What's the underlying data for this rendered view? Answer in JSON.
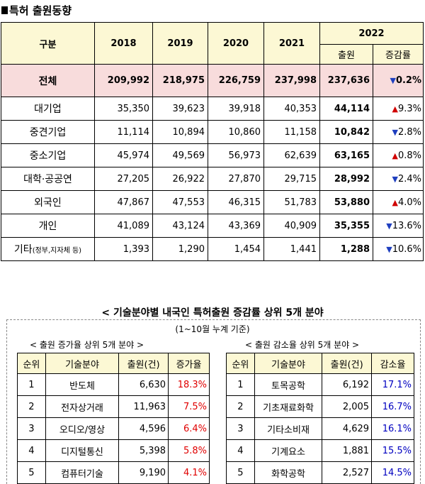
{
  "title": "특허 출원동향",
  "main": {
    "header": {
      "category": "구분",
      "years": [
        "2018",
        "2019",
        "2020",
        "2021"
      ],
      "year_2022": "2022",
      "applications": "출원",
      "growth": "증감률"
    },
    "total": {
      "name": "전체",
      "values": [
        "209,992",
        "218,975",
        "226,759",
        "237,998",
        "237,636"
      ],
      "change": "0.2%",
      "dir": "down"
    },
    "rows": [
      {
        "name": "대기업",
        "sub": "",
        "values": [
          "35,350",
          "39,623",
          "39,918",
          "40,353",
          "44,114"
        ],
        "change": "9.3%",
        "dir": "up"
      },
      {
        "name": "중견기업",
        "sub": "",
        "values": [
          "11,114",
          "10,894",
          "10,860",
          "11,158",
          "10,842"
        ],
        "change": "2.8%",
        "dir": "down"
      },
      {
        "name": "중소기업",
        "sub": "",
        "values": [
          "45,974",
          "49,569",
          "56,973",
          "62,639",
          "63,165"
        ],
        "change": "0.8%",
        "dir": "up"
      },
      {
        "name": "대학·공공연",
        "sub": "",
        "values": [
          "27,205",
          "26,922",
          "27,870",
          "29,715",
          "28,992"
        ],
        "change": "2.4%",
        "dir": "down"
      },
      {
        "name": "외국인",
        "sub": "",
        "values": [
          "47,867",
          "47,553",
          "46,315",
          "51,783",
          "53,880"
        ],
        "change": "4.0%",
        "dir": "up"
      },
      {
        "name": "개인",
        "sub": "",
        "values": [
          "41,089",
          "43,124",
          "43,369",
          "40,909",
          "35,355"
        ],
        "change": "13.6%",
        "dir": "down"
      },
      {
        "name": "기타",
        "sub": "(정부,지자체 등)",
        "values": [
          "1,393",
          "1,290",
          "1,454",
          "1,441",
          "1,288"
        ],
        "change": "10.6%",
        "dir": "down"
      }
    ]
  },
  "section": {
    "title": "< 기술분야별 내국인 특허출원 증감률 상위 5개 분야",
    "subtitle": "(1~10월 누계 기준)",
    "left_label": "< 출원 증가율 상위 5개 분야 >",
    "right_label": "< 출원 감소율 상위 5개 분야 >",
    "left_headers": [
      "순위",
      "기술분야",
      "출원(건)",
      "증가율"
    ],
    "right_headers": [
      "순위",
      "기술분야",
      "출원(건)",
      "감소율"
    ],
    "left_rows": [
      {
        "rank": "1",
        "field": "반도체",
        "count": "6,630",
        "rate": "18.3%"
      },
      {
        "rank": "2",
        "field": "전자상거래",
        "count": "11,963",
        "rate": "7.5%"
      },
      {
        "rank": "3",
        "field": "오디오/영상",
        "count": "4,596",
        "rate": "6.4%"
      },
      {
        "rank": "4",
        "field": "디지털통신",
        "count": "5,398",
        "rate": "5.8%"
      },
      {
        "rank": "5",
        "field": "컴퓨터기술",
        "count": "9,190",
        "rate": "4.1%"
      }
    ],
    "right_rows": [
      {
        "rank": "1",
        "field": "토목공학",
        "count": "6,192",
        "rate": "17.1%"
      },
      {
        "rank": "2",
        "field": "기초재료화학",
        "count": "2,005",
        "rate": "16.7%"
      },
      {
        "rank": "3",
        "field": "기타소비재",
        "count": "4,629",
        "rate": "16.1%"
      },
      {
        "rank": "4",
        "field": "기계요소",
        "count": "1,881",
        "rate": "15.5%"
      },
      {
        "rank": "5",
        "field": "화학공학",
        "count": "2,527",
        "rate": "14.5%"
      }
    ]
  }
}
